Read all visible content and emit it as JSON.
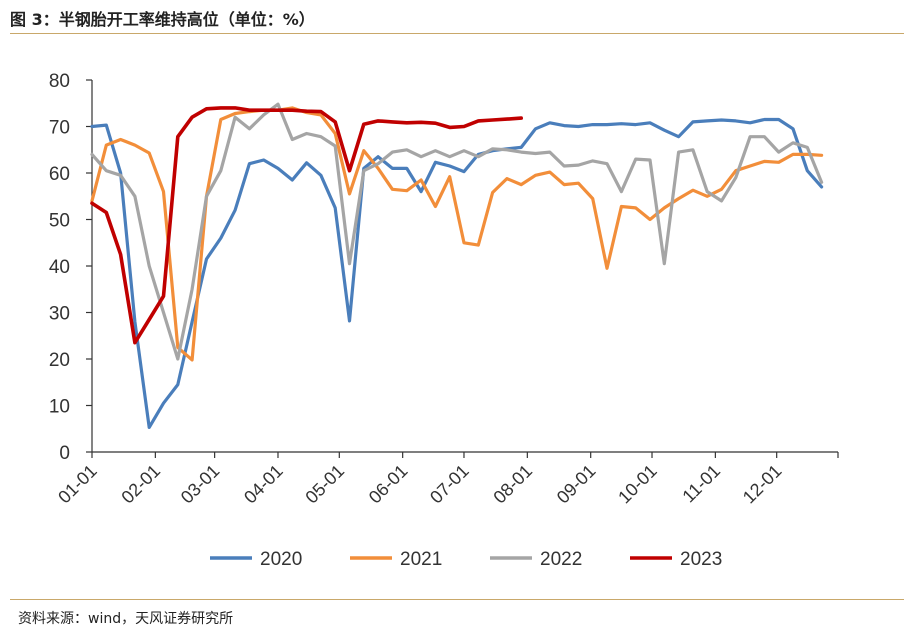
{
  "header": {
    "title": "图 3：半钢胎开工率维持高位（单位：%）"
  },
  "footer": {
    "source": "资料来源：wind，天风证券研究所"
  },
  "colors": {
    "rule": "#c9a86a",
    "s2020": "#4a7ebb",
    "s2021": "#f28e3a",
    "s2022": "#a5a5a5",
    "s2023": "#c00000"
  },
  "chart_data": {
    "type": "line",
    "title": "半钢胎开工率维持高位",
    "ylabel": "",
    "xlabel": "",
    "ylim": [
      0,
      80
    ],
    "yticks": [
      0,
      10,
      20,
      30,
      40,
      50,
      60,
      70,
      80
    ],
    "xlim": [
      1,
      366
    ],
    "xticks": [
      {
        "label": "01-01",
        "day": 1
      },
      {
        "label": "02-01",
        "day": 32
      },
      {
        "label": "03-01",
        "day": 61
      },
      {
        "label": "04-01",
        "day": 92
      },
      {
        "label": "05-01",
        "day": 122
      },
      {
        "label": "06-01",
        "day": 153
      },
      {
        "label": "07-01",
        "day": 183
      },
      {
        "label": "08-01",
        "day": 214
      },
      {
        "label": "09-01",
        "day": 245
      },
      {
        "label": "10-01",
        "day": 275
      },
      {
        "label": "11-01",
        "day": 306
      },
      {
        "label": "12-01",
        "day": 336
      }
    ],
    "legend_position": "bottom",
    "grid": false,
    "series": [
      {
        "name": "2020",
        "color": "#4a7ebb",
        "x": [
          1,
          8,
          15,
          22,
          29,
          36,
          43,
          50,
          57,
          64,
          71,
          78,
          85,
          92,
          99,
          106,
          113,
          120,
          127,
          134,
          141,
          148,
          155,
          162,
          169,
          176,
          183,
          190,
          197,
          204,
          211,
          218,
          225,
          232,
          239,
          246,
          253,
          260,
          267,
          274,
          281,
          288,
          295,
          302,
          309,
          316,
          323,
          330,
          337,
          344,
          351,
          358
        ],
        "y": [
          70,
          70.3,
          60,
          28,
          5.3,
          10.5,
          14.5,
          28,
          41.5,
          46,
          52,
          62,
          62.8,
          61,
          58.5,
          62.2,
          59.5,
          52.5,
          28.2,
          61,
          63.5,
          61,
          61,
          56,
          62.3,
          61.5,
          60.3,
          64,
          64.8,
          65.2,
          65.5,
          69.5,
          70.8,
          70.2,
          70,
          70.4,
          70.4,
          70.6,
          70.4,
          70.8,
          69.2,
          67.8,
          71,
          71.2,
          71.4,
          71.2,
          70.8,
          71.5,
          71.5,
          69.5,
          60.5,
          57
        ]
      },
      {
        "name": "2021",
        "color": "#f28e3a",
        "x": [
          1,
          8,
          15,
          22,
          29,
          36,
          43,
          50,
          57,
          64,
          71,
          78,
          85,
          92,
          99,
          106,
          113,
          120,
          127,
          134,
          141,
          148,
          155,
          162,
          169,
          176,
          183,
          190,
          197,
          204,
          211,
          218,
          225,
          232,
          239,
          246,
          253,
          260,
          267,
          274,
          281,
          288,
          295,
          302,
          309,
          316,
          323,
          330,
          337,
          344,
          351,
          358
        ],
        "y": [
          54,
          66,
          67.2,
          66,
          64.3,
          56,
          22.5,
          19.8,
          55,
          71.5,
          72.8,
          73.2,
          73.5,
          73.5,
          74,
          73,
          72.5,
          68.5,
          55.5,
          64.8,
          61,
          56.5,
          56.2,
          58.5,
          52.8,
          59.2,
          45,
          44.5,
          55.8,
          58.8,
          57.5,
          59.5,
          60.2,
          57.5,
          57.8,
          54.5,
          39.5,
          52.8,
          52.5,
          50,
          52.5,
          54.5,
          56.3,
          55,
          56.5,
          60.5,
          61.5,
          62.5,
          62.3,
          64,
          64,
          63.8
        ]
      },
      {
        "name": "2022",
        "color": "#a5a5a5",
        "x": [
          1,
          8,
          15,
          22,
          29,
          36,
          43,
          50,
          57,
          64,
          71,
          78,
          85,
          92,
          99,
          106,
          113,
          120,
          127,
          134,
          141,
          148,
          155,
          162,
          169,
          176,
          183,
          190,
          197,
          204,
          211,
          218,
          225,
          232,
          239,
          246,
          253,
          260,
          267,
          274,
          281,
          288,
          295,
          302,
          309,
          316,
          323,
          330,
          337,
          344,
          351,
          358
        ],
        "y": [
          64,
          60.5,
          59.5,
          55,
          40,
          30,
          20,
          35,
          55,
          60.5,
          72,
          69.5,
          72.5,
          74.8,
          67.2,
          68.5,
          67.8,
          65.8,
          40.5,
          60.5,
          62,
          64.5,
          65,
          63.5,
          64.8,
          63.5,
          64.8,
          63.5,
          65.2,
          65,
          64.5,
          64.2,
          64.5,
          61.5,
          61.7,
          62.6,
          62,
          56,
          63,
          62.8,
          40.5,
          64.5,
          65,
          56,
          54,
          59,
          67.8,
          67.8,
          64.5,
          66.5,
          65.5,
          58
        ]
      },
      {
        "name": "2023",
        "color": "#c00000",
        "x": [
          1,
          8,
          15,
          22,
          29,
          36,
          43,
          50,
          57,
          64,
          71,
          78,
          85,
          92,
          99,
          106,
          113,
          120,
          127,
          134,
          141,
          148,
          155,
          162,
          169,
          176,
          183,
          190,
          197,
          204,
          211
        ],
        "y": [
          53.5,
          51.5,
          42.5,
          23.5,
          28.5,
          33.5,
          67.8,
          72,
          73.8,
          74,
          74,
          73.5,
          73.5,
          73.5,
          73.5,
          73.3,
          73.2,
          71,
          60.5,
          70.5,
          71.2,
          71,
          70.8,
          70.9,
          70.7,
          69.8,
          70,
          71.2,
          71.4,
          71.6,
          71.8
        ]
      }
    ]
  }
}
